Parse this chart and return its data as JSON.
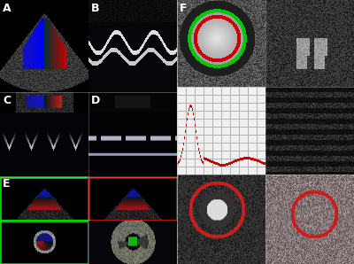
{
  "figure_width": 4.0,
  "figure_height": 2.98,
  "dpi": 100,
  "background_color": "#000000",
  "label_fontsize": 9,
  "border_colors": {
    "E_top_left": "#00cc00",
    "E_top_right": "#cc0000",
    "E_bot_left": "#00cc00",
    "E_bot_right": "#000000"
  },
  "axes": {
    "A": [
      0.0,
      0.65,
      0.25,
      0.35
    ],
    "B": [
      0.25,
      0.65,
      0.25,
      0.35
    ],
    "C": [
      0.0,
      0.33,
      0.25,
      0.32
    ],
    "D": [
      0.25,
      0.33,
      0.25,
      0.32
    ],
    "E1": [
      0.0,
      0.165,
      0.25,
      0.165
    ],
    "E2": [
      0.25,
      0.165,
      0.25,
      0.165
    ],
    "E3": [
      0.0,
      0.0,
      0.25,
      0.165
    ],
    "E4": [
      0.25,
      0.0,
      0.25,
      0.165
    ],
    "F1": [
      0.5,
      0.67,
      0.25,
      0.33
    ],
    "F2": [
      0.75,
      0.67,
      0.25,
      0.33
    ],
    "F3": [
      0.5,
      0.34,
      0.25,
      0.33
    ],
    "F4": [
      0.75,
      0.34,
      0.25,
      0.33
    ],
    "F5": [
      0.5,
      0.0,
      0.25,
      0.34
    ],
    "F6": [
      0.75,
      0.0,
      0.25,
      0.34
    ]
  }
}
